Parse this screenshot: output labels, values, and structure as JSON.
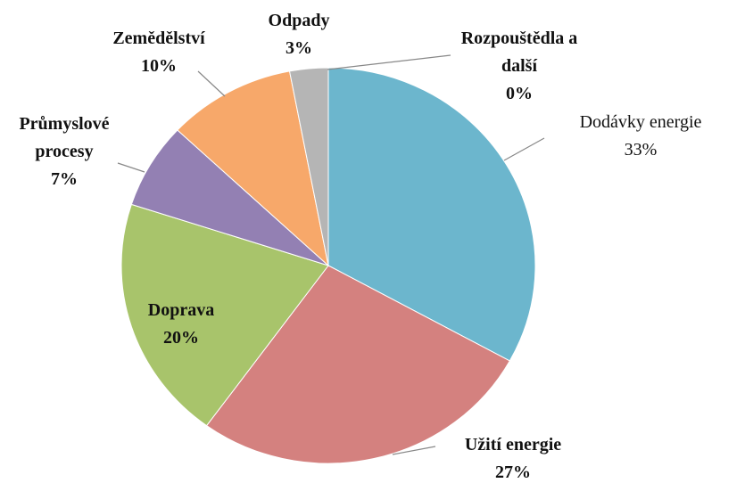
{
  "chart_data": {
    "type": "pie",
    "categories": [
      "Dodávky energie",
      "Užití energie",
      "Doprava",
      "Průmyslové procesy",
      "Zemědělství",
      "Odpady",
      "Rozpouštědla a další"
    ],
    "values": [
      33,
      27,
      20,
      7,
      10,
      3,
      0
    ],
    "value_labels": [
      "33%",
      "27%",
      "20%",
      "7%",
      "10%",
      "3%",
      "0%"
    ],
    "colors": [
      "#6cb6cd",
      "#d4817f",
      "#a8c46b",
      "#9380b3",
      "#f7a86a",
      "#b5b5b5",
      "#c9d9ee"
    ]
  }
}
